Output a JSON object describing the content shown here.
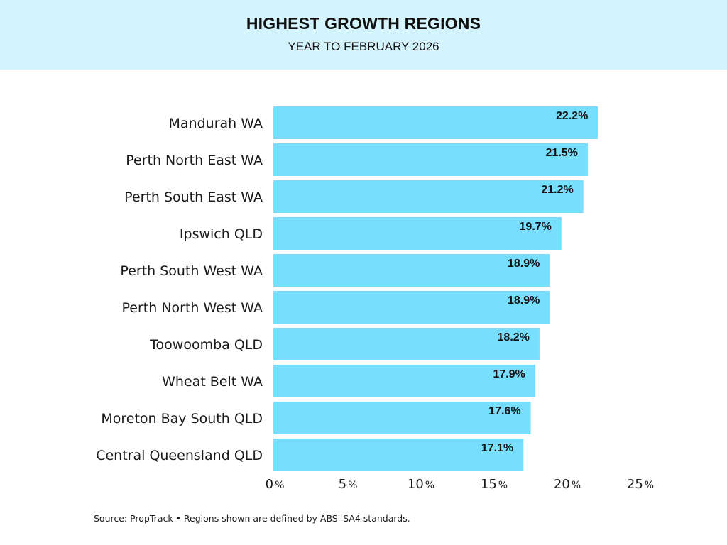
{
  "header": {
    "title": "HIGHEST GROWTH REGIONS",
    "subtitle": "YEAR TO FEBRUARY 2026"
  },
  "source": "Source: PropTrack • Regions shown are defined by ABS' SA4 standards.",
  "colors": {
    "header_bg": "#d3f3fd",
    "bar": "#77dffd"
  },
  "chart_data": {
    "type": "bar",
    "orientation": "horizontal",
    "title": "HIGHEST GROWTH REGIONS",
    "subtitle": "YEAR TO FEBRUARY 2026",
    "categories": [
      "Mandurah WA",
      "Perth North East WA",
      "Perth South East WA",
      "Ipswich QLD",
      "Perth South West WA",
      "Perth North West WA",
      "Toowoomba QLD",
      "Wheat Belt WA",
      "Moreton Bay South QLD",
      "Central Queensland QLD"
    ],
    "values": [
      22.2,
      21.5,
      21.2,
      19.7,
      18.9,
      18.9,
      18.2,
      17.9,
      17.6,
      17.1
    ],
    "value_labels": [
      "22.2%",
      "21.5%",
      "21.2%",
      "19.7%",
      "18.9%",
      "18.9%",
      "18.2%",
      "17.9%",
      "17.6%",
      "17.1%"
    ],
    "xlim": [
      0,
      25
    ],
    "xticks": [
      0,
      5,
      10,
      15,
      20,
      25
    ],
    "xtick_labels": [
      "0",
      "5",
      "10",
      "15",
      "20",
      "25"
    ],
    "xtick_unit": "%",
    "grid": false,
    "legend": "none"
  }
}
